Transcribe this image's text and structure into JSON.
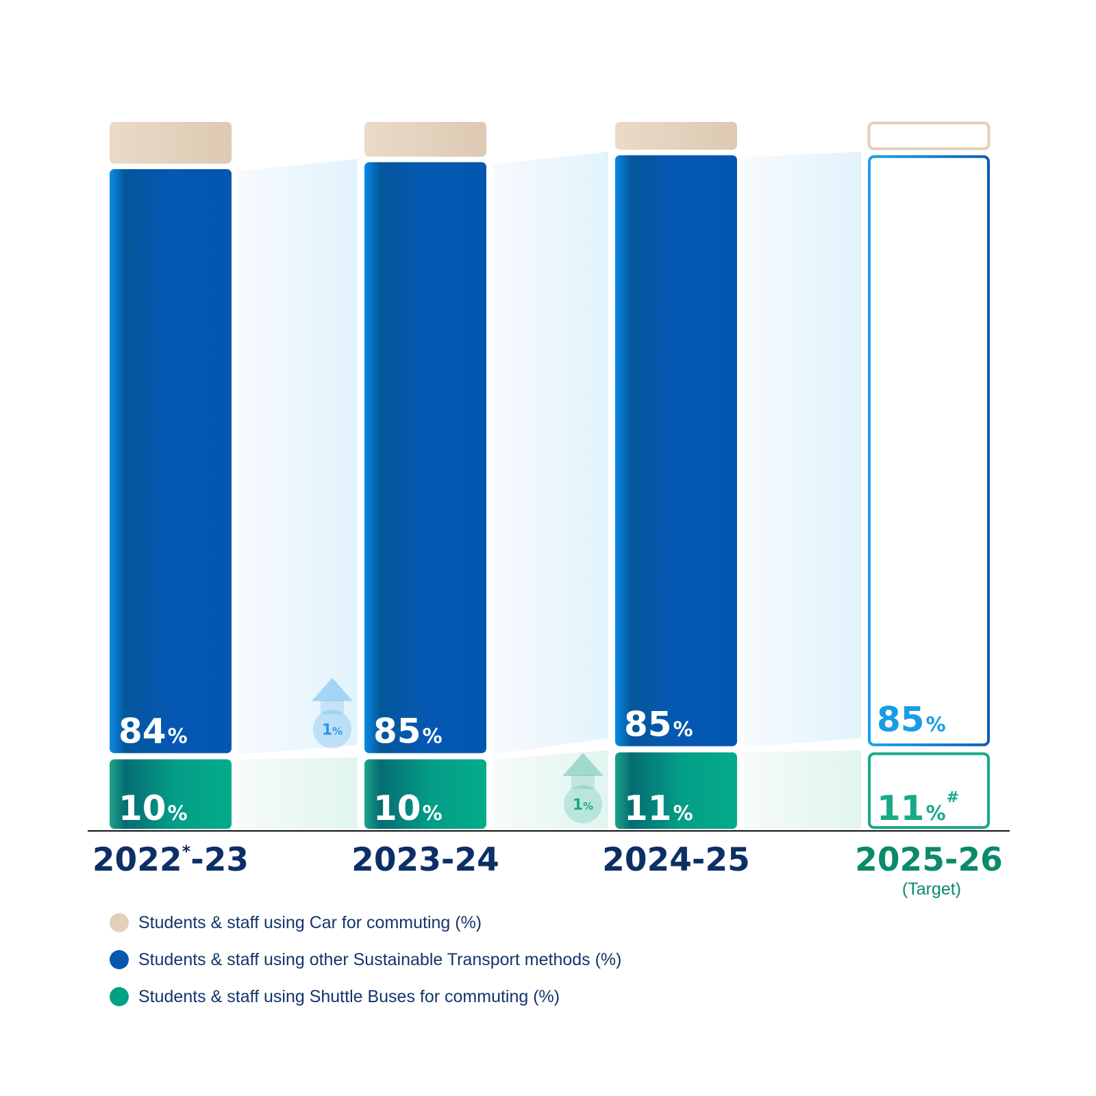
{
  "chart_data": {
    "type": "bar",
    "stacked": true,
    "categories": [
      {
        "pre": "2022",
        "sup": "*",
        "post": "-23",
        "note": "",
        "target": false
      },
      {
        "pre": "2023-24",
        "sup": "",
        "post": "",
        "note": "",
        "target": false
      },
      {
        "pre": "2024-25",
        "sup": "",
        "post": "",
        "note": "",
        "target": false
      },
      {
        "pre": "2025-26",
        "sup": "",
        "post": "",
        "note": "(Target)",
        "target": true
      }
    ],
    "series": [
      {
        "name": "Students & staff using Car for commuting (%)",
        "key": "car",
        "color": "#e2cfb8",
        "values": [
          6,
          5,
          4,
          4
        ],
        "labels": [
          "",
          "",
          "",
          ""
        ]
      },
      {
        "name": "Students & staff using other Sustainable Transport methods (%)",
        "key": "sustainable",
        "color": "#0657b0",
        "values": [
          84,
          85,
          85,
          85
        ],
        "labels": [
          "84",
          "85",
          "85",
          "85"
        ],
        "suffix": [
          "",
          "",
          "",
          ""
        ]
      },
      {
        "name": "Students & staff using Shuttle Buses for commuting (%)",
        "key": "shuttle",
        "color": "#03a184",
        "values": [
          10,
          10,
          11,
          11
        ],
        "labels": [
          "10",
          "10",
          "11",
          "11"
        ],
        "suffix": [
          "",
          "",
          "",
          "#"
        ]
      }
    ],
    "unit_symbol": "%",
    "changes": [
      {
        "between": [
          0,
          1
        ],
        "series": "sustainable",
        "label": "1",
        "direction": "up",
        "color": "#2b97e6"
      },
      {
        "between": [
          1,
          2
        ],
        "series": "shuttle",
        "label": "1",
        "direction": "up",
        "color": "#1fa787"
      }
    ],
    "legend_position": "bottom-left",
    "grid": false,
    "colors": {
      "year_text": "#0d2f66",
      "target_text": "#0a8a6a",
      "target_sustainable": "#1a9be6",
      "target_shuttle": "#17a98a"
    }
  }
}
